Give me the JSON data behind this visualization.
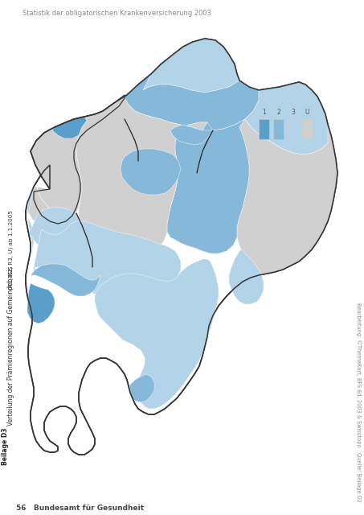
{
  "title_top": "Statistik der obligatorischen Krankenversicherung 2003",
  "label_beilage": "Beilage D3",
  "label_title": "Verteilung der Prämienregionen auf Gemeindebasis",
  "label_subtitle": "(R1, R2, R3, U) ab 1.1.2005",
  "footer_num": "56",
  "footer_text": "Bundesamt für Gesundheit",
  "footer_right": "Bearbeitung: ©ThemaKart, BFS Ed. 2003 & Swisstopo   Quelle: Beilage D2",
  "page_bg": "#ffffff",
  "legend_colors": [
    "#5b9ec9",
    "#85b8d9",
    "#b3d4e8",
    "#d0d0d0"
  ],
  "legend_labels": [
    "1",
    "2",
    "3",
    "U"
  ],
  "colors": {
    "r1": "#5b9ec9",
    "r2": "#85b8d9",
    "r3": "#b3d4e8",
    "u": "#d0d0d0",
    "white": "#ffffff",
    "outline_thick": "#111111",
    "outline_thin": "#cccccc"
  },
  "figsize": [
    4.53,
    6.4
  ],
  "dpi": 100
}
